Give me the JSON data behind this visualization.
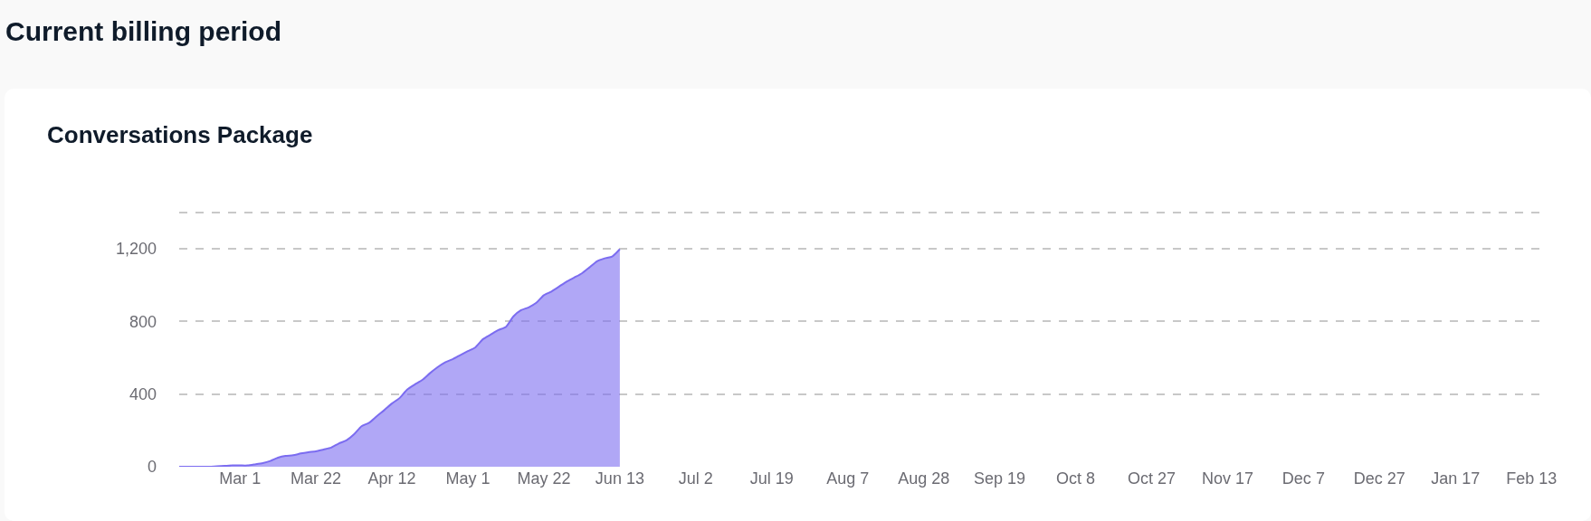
{
  "chart_data": {
    "type": "area",
    "title": "Current billing period",
    "subtitle": "Conversations Package",
    "categories": [
      null,
      null,
      null,
      null,
      null,
      null,
      null,
      null,
      "Mar 1",
      null,
      null,
      null,
      null,
      null,
      null,
      null,
      null,
      null,
      "Mar 22",
      null,
      null,
      null,
      null,
      null,
      null,
      null,
      null,
      null,
      "Apr 12",
      null,
      null,
      null,
      null,
      null,
      null,
      null,
      null,
      null,
      "May 1",
      null,
      null,
      null,
      null,
      null,
      null,
      null,
      null,
      null,
      "May 22",
      null,
      null,
      null,
      null,
      null,
      null,
      null,
      null,
      null,
      "Jun 13",
      null,
      null,
      null,
      null,
      null,
      null,
      null,
      null,
      null,
      "Jul 2",
      null,
      null,
      null,
      null,
      null,
      null,
      null,
      null,
      null,
      "Jul 19",
      null,
      null,
      null,
      null,
      null,
      null,
      null,
      null,
      null,
      "Aug 7",
      null,
      null,
      null,
      null,
      null,
      null,
      null,
      null,
      null,
      "Aug 28",
      null,
      null,
      null,
      null,
      null,
      null,
      null,
      null,
      null,
      "Sep 19",
      null,
      null,
      null,
      null,
      null,
      null,
      null,
      null,
      null,
      "Oct 8",
      null,
      null,
      null,
      null,
      null,
      null,
      null,
      null,
      null,
      "Oct 27",
      null,
      null,
      null,
      null,
      null,
      null,
      null,
      null,
      null,
      "Nov 17",
      null,
      null,
      null,
      null,
      null,
      null,
      null,
      null,
      null,
      "Dec 7",
      null,
      null,
      null,
      null,
      null,
      null,
      null,
      null,
      null,
      "Dec 27",
      null,
      null,
      null,
      null,
      null,
      null,
      null,
      null,
      null,
      "Jan 17",
      null,
      null,
      null,
      null,
      null,
      null,
      null,
      null,
      null,
      "Feb 13",
      null,
      null
    ],
    "series": [
      {
        "color": "#7b6cf0",
        "values": [
          0,
          0,
          0,
          0,
          0,
          3,
          5,
          7,
          7,
          7,
          13,
          20,
          32,
          50,
          60,
          63,
          73,
          80,
          85,
          95,
          105,
          128,
          145,
          178,
          223,
          242,
          278,
          312,
          348,
          378,
          425,
          453,
          478,
          515,
          548,
          575,
          592,
          615,
          637,
          658,
          703,
          728,
          753,
          770,
          828,
          862,
          878,
          903,
          945,
          965,
          992,
          1020,
          1042,
          1065,
          1098,
          1132,
          1148,
          1158,
          1198,
          null,
          null,
          null,
          null,
          null,
          null,
          null,
          null,
          null,
          null,
          null,
          null,
          null,
          null,
          null,
          null,
          null,
          null,
          null,
          null,
          null,
          null,
          null,
          null,
          null,
          null,
          null,
          null,
          null,
          null,
          null,
          null,
          null,
          null,
          null,
          null,
          null,
          null,
          null,
          null,
          null,
          null,
          null,
          null,
          null,
          null,
          null,
          null,
          null,
          null,
          null,
          null,
          null,
          null,
          null,
          null,
          null,
          null,
          null,
          null,
          null,
          null,
          null,
          null,
          null,
          null,
          null,
          null,
          null,
          null,
          null,
          null,
          null,
          null,
          null,
          null,
          null,
          null,
          null,
          null,
          null,
          null,
          null,
          null,
          null,
          null,
          null,
          null,
          null,
          null,
          null,
          null,
          null,
          null,
          null,
          null,
          null,
          null,
          null,
          null,
          null,
          null,
          null,
          null,
          null,
          null,
          null,
          null,
          null,
          null,
          null,
          null,
          null,
          null,
          null,
          null,
          null,
          null,
          null,
          null,
          null,
          null
        ]
      }
    ],
    "ylim": [
      0,
      1410
    ],
    "yticks": [
      0,
      400,
      800,
      {
        "value": 1200,
        "label": "1,200"
      },
      {
        "value": 1400,
        "label": null
      }
    ],
    "grid": "y",
    "legend": false
  }
}
